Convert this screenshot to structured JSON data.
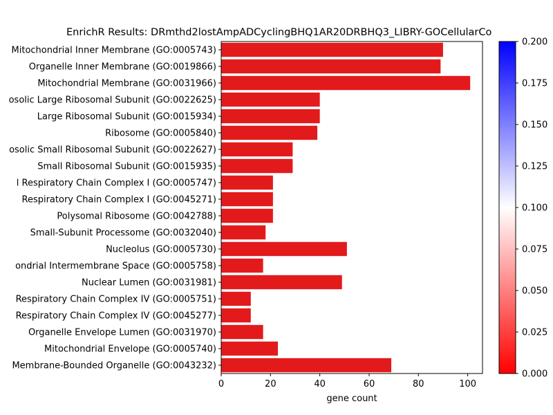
{
  "chart_data": {
    "type": "bar",
    "orientation": "horizontal",
    "title": "EnrichR Results: DRmthd2lostAmpADCyclingBHQ1AR20DRBHQ3_LIBRY-GOCellularCo",
    "xlabel": "gene count",
    "ylabel": "",
    "xlim": [
      0,
      106
    ],
    "xticks": [
      0,
      20,
      40,
      60,
      80,
      100
    ],
    "bar_color": "#e31a1c",
    "categories": [
      "Mitochondrial Inner Membrane (GO:0005743)",
      "Organelle Inner Membrane (GO:0019866)",
      "Mitochondrial Membrane (GO:0031966)",
      "osolic Large Ribosomal Subunit (GO:0022625)",
      "Large Ribosomal Subunit (GO:0015934)",
      "Ribosome (GO:0005840)",
      "osolic Small Ribosomal Subunit (GO:0022627)",
      "Small Ribosomal Subunit (GO:0015935)",
      "l Respiratory Chain Complex I (GO:0005747)",
      "Respiratory Chain Complex I (GO:0045271)",
      "Polysomal Ribosome (GO:0042788)",
      "Small-Subunit Processome (GO:0032040)",
      "Nucleolus (GO:0005730)",
      "ondrial Intermembrane Space (GO:0005758)",
      "Nuclear Lumen (GO:0031981)",
      "Respiratory Chain Complex IV (GO:0005751)",
      "Respiratory Chain Complex IV (GO:0045277)",
      "Organelle Envelope Lumen (GO:0031970)",
      "Mitochondrial Envelope (GO:0005740)",
      "Membrane-Bounded Organelle (GO:0043232)"
    ],
    "values": [
      90,
      89,
      101,
      40,
      40,
      39,
      29,
      29,
      21,
      21,
      21,
      18,
      51,
      17,
      49,
      12,
      12,
      17,
      23,
      69
    ],
    "colorbar": {
      "ticks": [
        "0.000",
        "0.025",
        "0.050",
        "0.075",
        "0.100",
        "0.125",
        "0.150",
        "0.175",
        "0.200"
      ],
      "range": [
        0,
        0.2
      ],
      "colors": [
        "#ff0000",
        "#ffffff",
        "#0000ff"
      ]
    },
    "grid": false,
    "legend": "none"
  }
}
